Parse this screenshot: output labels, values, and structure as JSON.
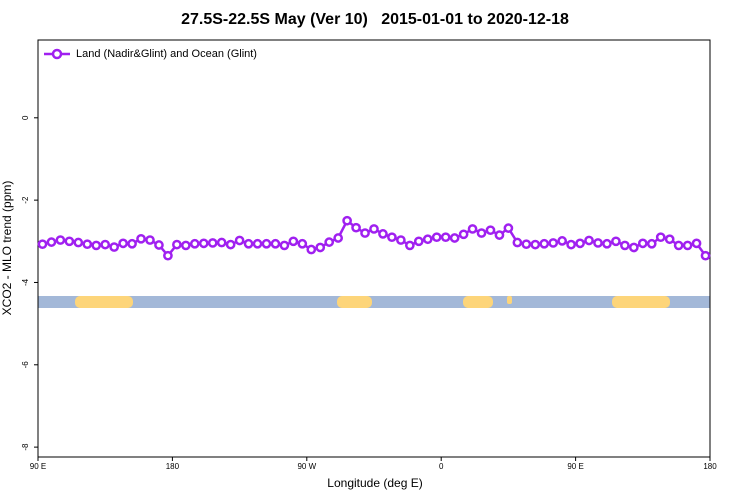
{
  "chart_data": {
    "type": "line",
    "title": "27.5S-22.5S May (Ver 10)   2015-01-01 to 2020-12-18",
    "xlabel": "Longitude (deg E)",
    "ylabel": "XCO2 - MLO trend (ppm)",
    "legend": "top-left",
    "xlim": [
      90,
      540
    ],
    "xticks": [
      {
        "value": 90,
        "label": "90 E"
      },
      180,
      {
        "value": 270,
        "label": "90 W"
      },
      {
        "value": 360,
        "label": "0"
      },
      {
        "value": 450,
        "label": "90 E"
      },
      {
        "value": 540,
        "label": "180"
      }
    ],
    "ylim": [
      -8.24,
      1.89
    ],
    "yticks": [
      0,
      -2,
      -4,
      -6,
      -8
    ],
    "x": [
      93,
      99,
      105,
      111,
      117,
      123,
      129,
      135,
      141,
      147,
      153,
      159,
      165,
      171,
      177,
      183,
      189,
      195,
      201,
      207,
      213,
      219,
      225,
      231,
      237,
      243,
      249,
      255,
      261,
      267,
      273,
      279,
      285,
      291,
      297,
      303,
      309,
      315,
      321,
      327,
      333,
      339,
      345,
      351,
      357,
      363,
      369,
      375,
      381,
      387,
      393,
      399,
      405,
      411,
      417,
      423,
      429,
      435,
      441,
      447,
      453,
      459,
      465,
      471,
      477,
      483,
      489,
      495,
      501,
      507,
      513,
      519,
      525,
      531,
      537
    ],
    "series": [
      {
        "name": "Land (Nadir&Glint) and Ocean (Glint)",
        "color": "#a020f0",
        "values": [
          -3.07,
          -3.02,
          -2.97,
          -3.0,
          -3.03,
          -3.07,
          -3.1,
          -3.08,
          -3.14,
          -3.05,
          -3.06,
          -2.94,
          -2.97,
          -3.09,
          -3.35,
          -3.08,
          -3.1,
          -3.06,
          -3.05,
          -3.04,
          -3.03,
          -3.08,
          -2.98,
          -3.06,
          -3.06,
          -3.06,
          -3.06,
          -3.1,
          -3.0,
          -3.06,
          -3.2,
          -3.15,
          -3.02,
          -2.92,
          -2.5,
          -2.67,
          -2.8,
          -2.7,
          -2.82,
          -2.9,
          -2.97,
          -3.1,
          -3.0,
          -2.95,
          -2.9,
          -2.9,
          -2.92,
          -2.83,
          -2.7,
          -2.8,
          -2.73,
          -2.85,
          -2.68,
          -3.03,
          -3.07,
          -3.08,
          -3.06,
          -3.04,
          -2.99,
          -3.08,
          -3.05,
          -2.98,
          -3.04,
          -3.06,
          -3.0,
          -3.1,
          -3.15,
          -3.05,
          -3.06,
          -2.9,
          -2.95,
          -3.1,
          -3.1,
          -3.05,
          -3.35
        ]
      }
    ]
  }
}
